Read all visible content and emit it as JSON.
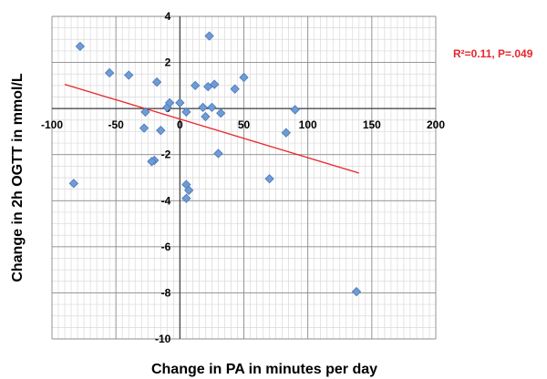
{
  "chart_data": {
    "type": "scatter",
    "xlabel": "Change in  PA in minutes per day",
    "ylabel": "Change in 2h OGTT in mmol/L",
    "xlim": [
      -100,
      200
    ],
    "ylim": [
      -10,
      4
    ],
    "x_ticks": [
      -100,
      -50,
      0,
      50,
      100,
      150,
      200
    ],
    "y_ticks": [
      -10,
      -8,
      -6,
      -4,
      -2,
      0,
      2,
      4
    ],
    "grid": true,
    "x_minor_step": 5,
    "y_minor_step": 0.5,
    "annotation": "R²=0.11, P=.049",
    "annotation_color": "#e8262b",
    "point_color": "#6f9bd6",
    "point_edge_color": "#4a78b6",
    "trendline_color": "#e8262b",
    "trendline": {
      "x": [
        -90,
        140
      ],
      "y": [
        1.05,
        -2.8
      ]
    },
    "points": [
      {
        "x": -78,
        "y": 2.7
      },
      {
        "x": -55,
        "y": 1.55
      },
      {
        "x": -40,
        "y": 1.45
      },
      {
        "x": -83,
        "y": -3.25
      },
      {
        "x": -18,
        "y": 1.15
      },
      {
        "x": -27,
        "y": -0.15
      },
      {
        "x": -28,
        "y": -0.85
      },
      {
        "x": -15,
        "y": -0.95
      },
      {
        "x": -20,
        "y": -2.25
      },
      {
        "x": -22,
        "y": -2.3
      },
      {
        "x": -10,
        "y": 0.05
      },
      {
        "x": -8,
        "y": 0.25
      },
      {
        "x": 0,
        "y": 0.25
      },
      {
        "x": 5,
        "y": -0.15
      },
      {
        "x": 12,
        "y": 1.0
      },
      {
        "x": 18,
        "y": 0.05
      },
      {
        "x": 22,
        "y": 0.95
      },
      {
        "x": 20,
        "y": -0.35
      },
      {
        "x": 25,
        "y": 0.05
      },
      {
        "x": 27,
        "y": 1.05
      },
      {
        "x": 23,
        "y": 3.15
      },
      {
        "x": 30,
        "y": -1.95
      },
      {
        "x": 32,
        "y": -0.2
      },
      {
        "x": 43,
        "y": 0.85
      },
      {
        "x": 50,
        "y": 1.35
      },
      {
        "x": 5,
        "y": -3.3
      },
      {
        "x": 7,
        "y": -3.55
      },
      {
        "x": 5,
        "y": -3.9
      },
      {
        "x": 70,
        "y": -3.05
      },
      {
        "x": 83,
        "y": -1.05
      },
      {
        "x": 90,
        "y": -0.05
      },
      {
        "x": 138,
        "y": -7.95
      }
    ]
  }
}
